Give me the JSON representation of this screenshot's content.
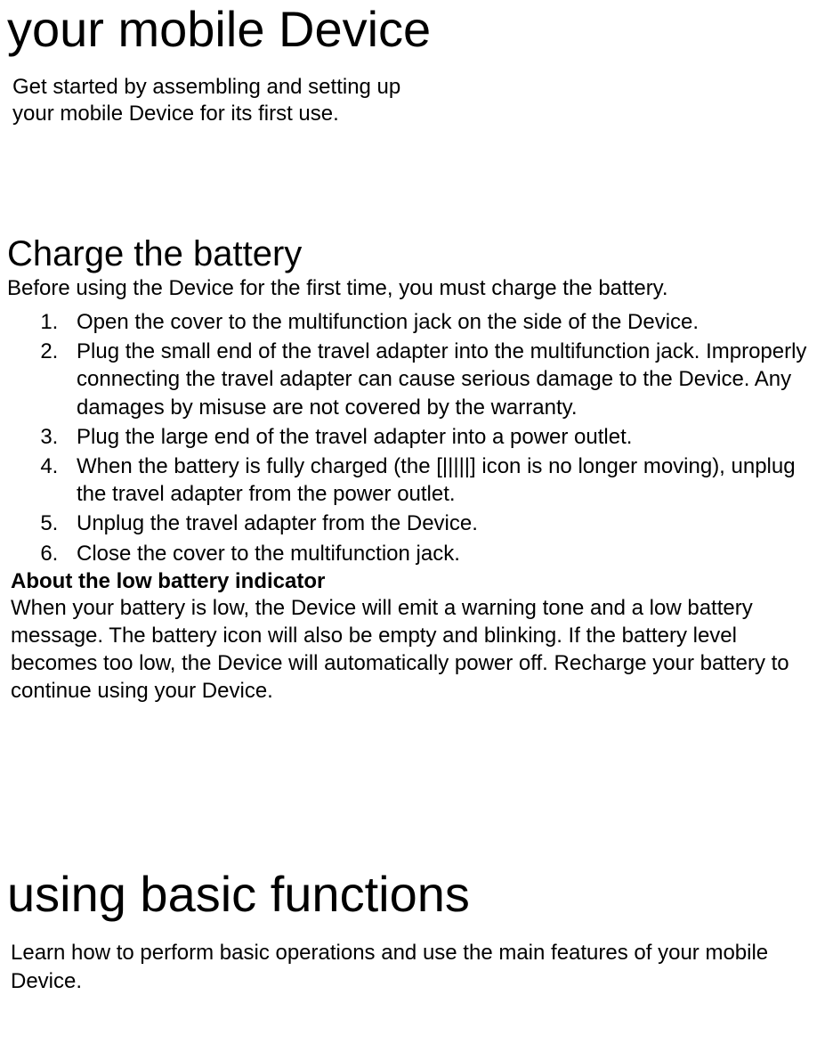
{
  "title": "your mobile Device",
  "intro_line1": "Get started by assembling and setting up",
  "intro_line2": " your mobile Device for its first use.",
  "section1": {
    "heading": "Charge the battery",
    "intro": "Before using the Device for the first time, you must charge the battery.",
    "steps": [
      "Open the cover to the multifunction jack on the side of the Device.",
      "Plug the small end of the travel adapter into the multifunction jack. Improperly connecting the travel adapter can cause serious damage to the Device. Any damages by misuse are not covered by the warranty.",
      "Plug the large end of the travel adapter into a power outlet.",
      "When the battery is fully charged (the [|||||] icon is no longer moving), unplug the travel adapter from the power outlet.",
      "Unplug the travel adapter from the Device.",
      "Close the cover to the multifunction jack."
    ],
    "subheading": "About the low battery indicator",
    "body": "When your battery is low, the Device will emit a warning tone and a low battery message. The battery icon will also be empty and blinking. If the battery level becomes too low, the Device will automatically power off. Recharge your battery to continue using your Device."
  },
  "section2": {
    "heading": "using basic functions",
    "intro": " Learn how to perform basic operations and use the main features of your mobile Device."
  },
  "colors": {
    "background": "#ffffff",
    "text": "#000000"
  },
  "typography": {
    "title_fontsize": 56,
    "heading_fontsize": 40,
    "body_fontsize": 24,
    "font_family": "Arial"
  }
}
